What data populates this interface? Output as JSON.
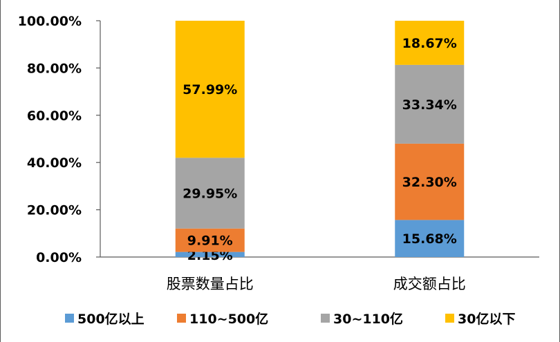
{
  "chart_data": {
    "type": "bar",
    "stacked": true,
    "categories": [
      "股票数量占比",
      "成交额占比"
    ],
    "series": [
      {
        "name": "500亿以上",
        "color": "#5b9bd5",
        "values": [
          2.15,
          15.68
        ],
        "labels": [
          "2.15%",
          "15.68%"
        ]
      },
      {
        "name": "110~500亿",
        "color": "#ed7d31",
        "values": [
          9.91,
          32.3
        ],
        "labels": [
          "9.91%",
          "32.30%"
        ]
      },
      {
        "name": "30~110亿",
        "color": "#a5a5a5",
        "values": [
          29.95,
          33.34
        ],
        "labels": [
          "29.95%",
          "33.34%"
        ]
      },
      {
        "name": "30亿以下",
        "color": "#ffc000",
        "values": [
          57.99,
          18.67
        ],
        "labels": [
          "57.99%",
          "18.67%"
        ]
      }
    ],
    "ylim": [
      0,
      100
    ],
    "yticks": [
      "0.00%",
      "20.00%",
      "40.00%",
      "60.00%",
      "80.00%",
      "100.00%"
    ],
    "grid": false,
    "legend": "bottom"
  }
}
